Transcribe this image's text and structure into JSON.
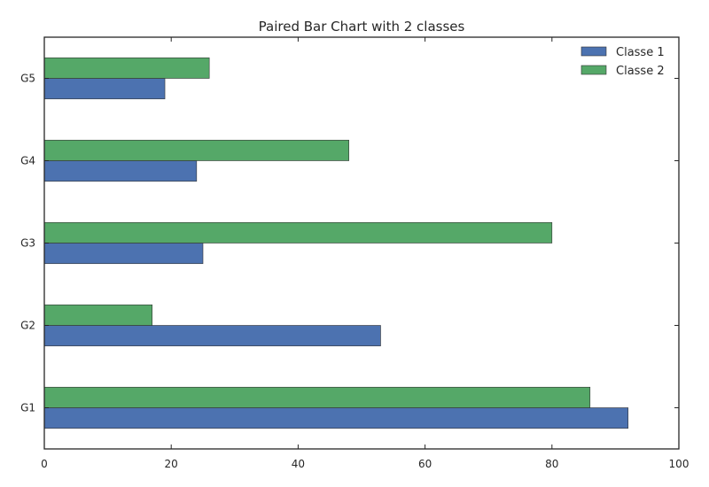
{
  "chart_data": {
    "type": "bar",
    "orientation": "horizontal",
    "title": "Paired Bar Chart with 2 classes",
    "xlabel": "",
    "ylabel": "",
    "categories": [
      "G1",
      "G2",
      "G3",
      "G4",
      "G5"
    ],
    "series": [
      {
        "name": "Classe 1",
        "values": [
          92,
          53,
          25,
          24,
          19
        ],
        "color": "#4c72b0"
      },
      {
        "name": "Classe 2",
        "values": [
          86,
          17,
          80,
          48,
          26
        ],
        "color": "#55a868"
      }
    ],
    "xlim": [
      0,
      100
    ],
    "xticks": [
      0,
      20,
      40,
      60,
      80,
      100
    ],
    "grid": false,
    "legend_position": "top-right"
  }
}
